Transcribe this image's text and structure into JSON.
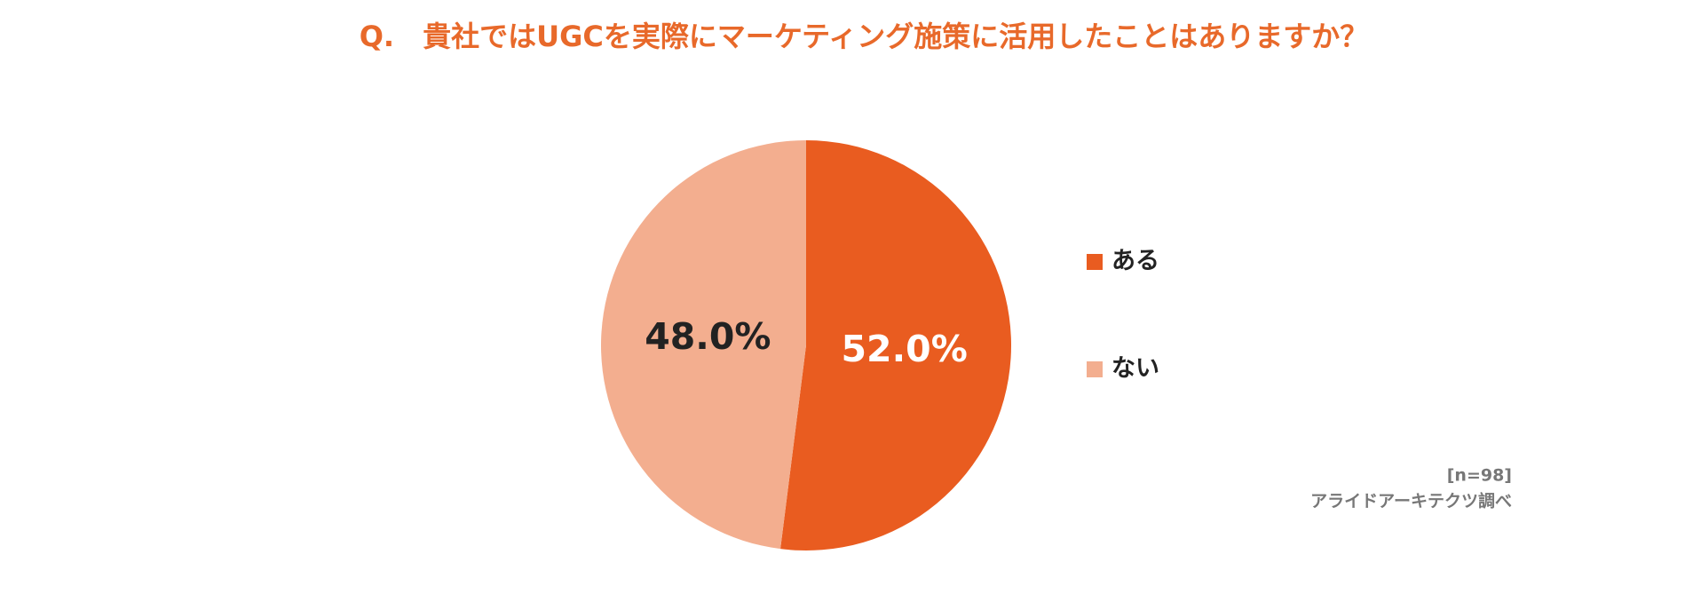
{
  "chart_data": {
    "type": "pie",
    "title": "Q.　貴社ではUGCを実際にマーケティング施策に活用したことはありますか？",
    "categories": [
      "ある",
      "ない"
    ],
    "values": [
      52.0,
      48.0
    ],
    "value_labels": [
      "52.0%",
      "48.0%"
    ],
    "colors": [
      "#e95c20",
      "#f3ae8f"
    ],
    "label_colors": [
      "#ffffff",
      "#222222"
    ],
    "title_color": "#e8692a",
    "legend": "right",
    "notes": [
      "[n=98]",
      "アライドアーキテクツ調べ"
    ]
  }
}
